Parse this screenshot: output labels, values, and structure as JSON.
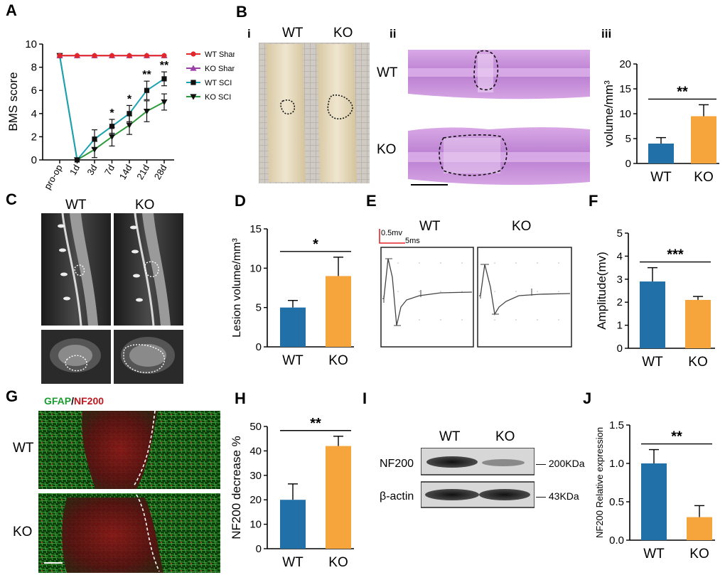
{
  "colors": {
    "wt": "#2171a8",
    "ko": "#f6a43c",
    "sham_wt": "#e3262a",
    "sham_ko": "#9a3ea8",
    "sci_wt": "#1ba1b3",
    "sci_ko": "#2d9a3a",
    "he": "#c98fd6",
    "tissue": "#e8dcc0",
    "gfap": "#1c9c2e",
    "nf200": "#c0171e"
  },
  "panels": {
    "A": "A",
    "B": "B",
    "C": "C",
    "D": "D",
    "E": "E",
    "F": "F",
    "G": "G",
    "H": "H",
    "I": "I",
    "J": "J"
  },
  "labels": {
    "b_i": "i",
    "b_ii": "ii",
    "b_iii": "iii",
    "wt": "WT",
    "ko": "KO",
    "gfap": "GFAP",
    "slash": "/",
    "nf200": "NF200",
    "emg_amp": "0.5mv",
    "emg_time": "5ms",
    "wb_nf200": "NF200",
    "wb_actin": "β-actin",
    "wb_200": "— 200KDa",
    "wb_43": "— 43KDa"
  },
  "chart_data": [
    {
      "panel": "A",
      "type": "line",
      "categories": [
        "pro-op",
        "1d",
        "3d",
        "7d",
        "14d",
        "21d",
        "28d"
      ],
      "ylabel": "BMS score",
      "ylim": [
        0,
        10
      ],
      "yticks": [
        0,
        2,
        4,
        6,
        8,
        10
      ],
      "series": [
        {
          "name": "WT Sham",
          "values": [
            9,
            9,
            9,
            9,
            9,
            9,
            9
          ],
          "err": [
            0,
            0,
            0,
            0,
            0,
            0,
            0
          ],
          "color": "#e3262a",
          "marker": "circle"
        },
        {
          "name": "KO Sham",
          "values": [
            9,
            9,
            9,
            9,
            9,
            9,
            9
          ],
          "err": [
            0,
            0,
            0,
            0,
            0,
            0,
            0
          ],
          "color": "#9a3ea8",
          "marker": "triangle"
        },
        {
          "name": "WT SCI",
          "values": [
            9,
            0,
            1.8,
            2.9,
            4,
            6,
            7
          ],
          "err": [
            0,
            0,
            0.8,
            0.6,
            0.7,
            0.8,
            0.6
          ],
          "color": "#1ba1b3",
          "marker": "square"
        },
        {
          "name": "KO SCI",
          "values": [
            9,
            0,
            0.9,
            2,
            3,
            4.2,
            5
          ],
          "err": [
            0,
            0,
            0.7,
            0.8,
            0.8,
            0.9,
            0.7
          ],
          "color": "#2d9a3a",
          "marker": "triangle-down"
        }
      ],
      "sig": [
        {
          "cat": "7d",
          "text": "*"
        },
        {
          "cat": "14d",
          "text": "*"
        },
        {
          "cat": "21d",
          "text": "**"
        },
        {
          "cat": "28d",
          "text": "**"
        }
      ]
    },
    {
      "panel": "B-iii",
      "type": "bar",
      "categories": [
        "WT",
        "KO"
      ],
      "values": [
        4,
        9.5
      ],
      "err": [
        1.2,
        2.3
      ],
      "ylabel": "volume/mm³",
      "ylim": [
        0,
        20
      ],
      "yticks": [
        0,
        5,
        10,
        15,
        20
      ],
      "sig": "**"
    },
    {
      "panel": "D",
      "type": "bar",
      "categories": [
        "WT",
        "KO"
      ],
      "values": [
        5,
        9
      ],
      "err": [
        0.9,
        2.4
      ],
      "ylabel": "Lesion volume/mm³",
      "ylim": [
        0,
        15
      ],
      "yticks": [
        0,
        5,
        10,
        15
      ],
      "sig": "*"
    },
    {
      "panel": "F",
      "type": "bar",
      "categories": [
        "WT",
        "KO"
      ],
      "values": [
        2.9,
        2.1
      ],
      "err": [
        0.6,
        0.15
      ],
      "ylabel": "Amplitude(mv)",
      "ylim": [
        0,
        5
      ],
      "yticks": [
        0,
        1,
        2,
        3,
        4,
        5
      ],
      "sig": "***"
    },
    {
      "panel": "H",
      "type": "bar",
      "categories": [
        "WT",
        "KO"
      ],
      "values": [
        20,
        42
      ],
      "err": [
        6.5,
        4
      ],
      "ylabel": "NF200 decrease %",
      "ylim": [
        0,
        50
      ],
      "yticks": [
        0,
        10,
        20,
        30,
        40,
        50
      ],
      "sig": "**"
    },
    {
      "panel": "J",
      "type": "bar",
      "categories": [
        "WT",
        "KO"
      ],
      "values": [
        1.0,
        0.3
      ],
      "err": [
        0.18,
        0.15
      ],
      "ylabel": "NF200 Relative expression",
      "ylim": [
        0,
        1.5
      ],
      "yticks": [
        "0.0",
        "0.5",
        "1.0",
        "1.5"
      ],
      "sig": "**"
    }
  ]
}
